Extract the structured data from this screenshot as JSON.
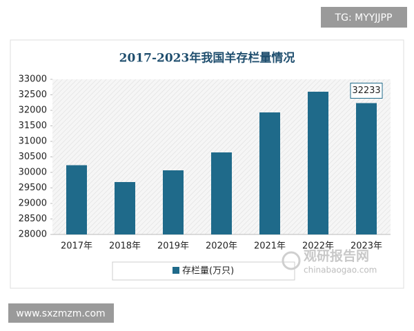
{
  "chart_data": {
    "type": "bar",
    "title": "2017-2023年我国羊存栏量情况",
    "categories": [
      "2017年",
      "2018年",
      "2019年",
      "2020年",
      "2021年",
      "2022年",
      "2023年"
    ],
    "series": [
      {
        "name": "存栏量(万只)",
        "color": "#1f6a8a",
        "values": [
          30232,
          29689,
          30067,
          30644,
          31933,
          32600,
          32233
        ]
      }
    ],
    "labeled_points": [
      6
    ],
    "ylim": [
      28000,
      33000
    ],
    "yticks": [
      28000,
      28500,
      29000,
      29500,
      30000,
      30500,
      31000,
      31500,
      32000,
      32500,
      33000
    ],
    "grid": false
  },
  "overlay": {
    "tag": "TG: MYYJJPP",
    "site": "www.sxzmzm.com",
    "logo_cn": "观研报告网",
    "logo_en": "chinabaogao.com"
  }
}
